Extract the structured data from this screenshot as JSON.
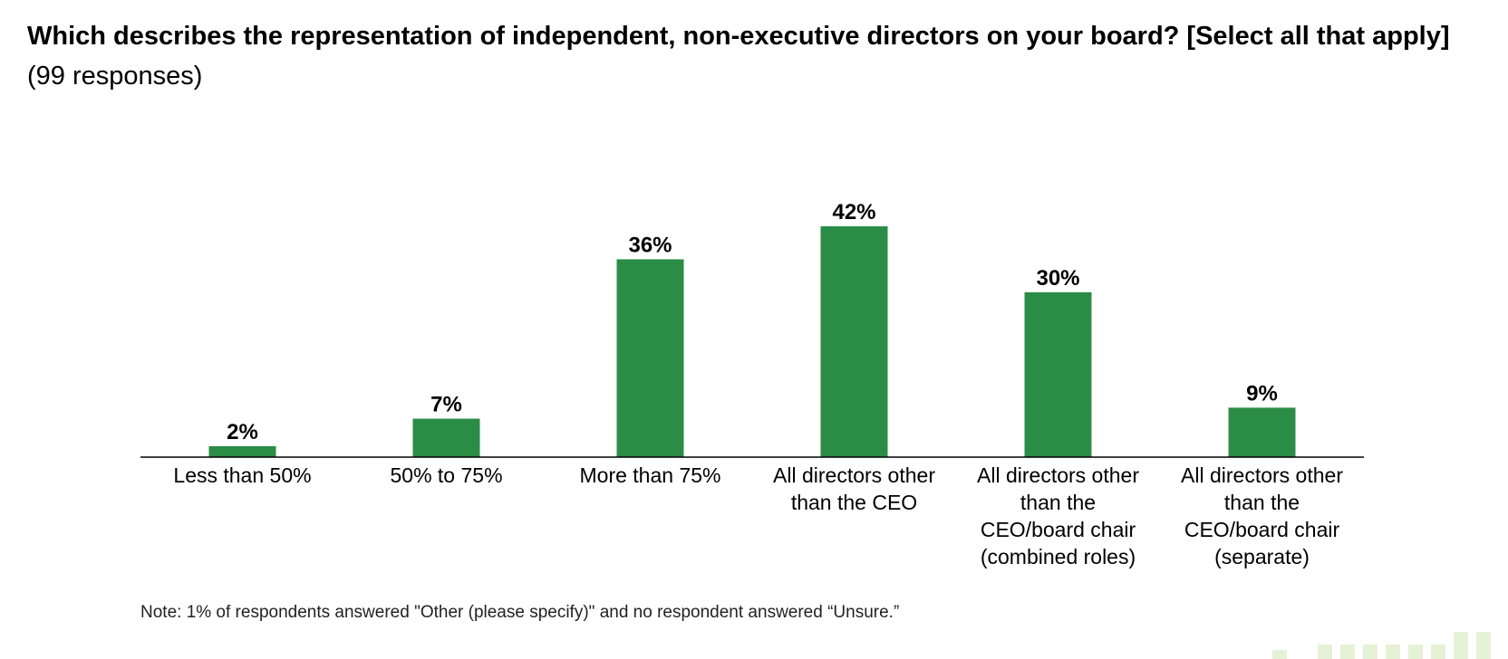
{
  "title": {
    "question": "Which describes the representation of independent, non-executive directors on your board? [Select all that apply]",
    "responses": "(99 responses)"
  },
  "chart_data": {
    "type": "bar",
    "categories": [
      "Less than 50%",
      "50% to 75%",
      "More than 75%",
      "All directors other than the CEO",
      "All directors other than the CEO/board chair (combined roles)",
      "All directors other than the CEO/board chair (separate)"
    ],
    "category_lines": [
      [
        "Less than 50%"
      ],
      [
        "50% to 75%"
      ],
      [
        "More than 75%"
      ],
      [
        "All directors other",
        "than the CEO"
      ],
      [
        "All directors other",
        "than the",
        "CEO/board chair",
        "(combined roles)"
      ],
      [
        "All directors other",
        "than the",
        "CEO/board chair",
        "(separate)"
      ]
    ],
    "values": [
      2,
      7,
      36,
      42,
      30,
      9
    ],
    "value_labels": [
      "2%",
      "7%",
      "36%",
      "42%",
      "30%",
      "9%"
    ],
    "unit": "%",
    "ylim": [
      0,
      42
    ],
    "grid": false,
    "bar_color": "#2b8c46"
  },
  "note": "Note: 1% of respondents answered \"Other (please specify)\" and no respondent answered “Unsure.”",
  "colors": {
    "accent": "#2b8c46",
    "decoration": "#e6f2d6"
  }
}
